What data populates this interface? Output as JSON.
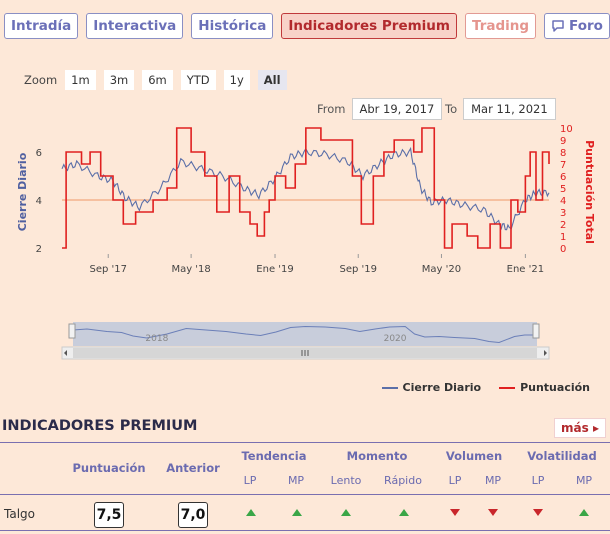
{
  "tabs": [
    {
      "label": "Intradía"
    },
    {
      "label": "Interactiva"
    },
    {
      "label": "Histórica"
    },
    {
      "label": "Indicadores Premium",
      "active": true
    },
    {
      "label": "Trading"
    },
    {
      "label": "Foro",
      "icon": "chat-bubble-icon"
    }
  ],
  "zoom": {
    "label": "Zoom",
    "buttons": [
      "1m",
      "3m",
      "6m",
      "YTD",
      "1y",
      "All"
    ],
    "selected": "All"
  },
  "range": {
    "from_label": "From",
    "from": "Abr 19, 2017",
    "to_label": "To",
    "to": "Mar 11, 2021"
  },
  "colors": {
    "close": "#5b6fa8",
    "score": "#e02020",
    "accent": "#b22a2d",
    "reference": "#f2a77e"
  },
  "chart_data": {
    "type": "line",
    "ylabel_left": "Cierre Diario",
    "ylabel_right": "Puntuación Total",
    "y_left_ticks": [
      "2",
      "4",
      "6"
    ],
    "y_right_ticks": [
      "0",
      "1",
      "2",
      "3",
      "4",
      "5",
      "6",
      "7",
      "8",
      "9",
      "10"
    ],
    "x_ticks": [
      "Sep '17",
      "May '18",
      "Ene '19",
      "Sep '19",
      "May '20",
      "Ene '21"
    ],
    "navigator_ticks": [
      "2018",
      "2020"
    ],
    "ylim_left": [
      2,
      6.5
    ],
    "ylim_right": [
      0,
      10
    ],
    "reference_line_left": 4,
    "series": [
      {
        "name": "Cierre Diario",
        "axis": "left",
        "x": [
          "2017-04-19",
          "2017-06-01",
          "2017-08-01",
          "2017-09-15",
          "2017-10-20",
          "2017-12-01",
          "2018-02-01",
          "2018-04-01",
          "2018-06-01",
          "2018-08-01",
          "2018-10-01",
          "2018-11-15",
          "2019-01-01",
          "2019-02-15",
          "2019-04-01",
          "2019-06-01",
          "2019-08-01",
          "2019-09-15",
          "2019-11-01",
          "2019-12-15",
          "2020-02-01",
          "2020-03-01",
          "2020-04-01",
          "2020-05-15",
          "2020-07-01",
          "2020-09-01",
          "2020-10-15",
          "2020-11-15",
          "2021-01-01",
          "2021-02-01",
          "2021-03-11"
        ],
        "y": [
          5.3,
          5.5,
          5.0,
          4.8,
          4.1,
          3.7,
          4.5,
          5.6,
          5.3,
          5.0,
          4.5,
          4.2,
          4.9,
          5.8,
          6.0,
          5.9,
          5.6,
          5.0,
          5.5,
          5.9,
          6.0,
          4.5,
          3.9,
          4.0,
          3.8,
          3.6,
          3.0,
          2.8,
          4.0,
          4.3,
          4.3
        ]
      },
      {
        "name": "Puntuación",
        "axis": "right",
        "x": [
          "2017-04-19",
          "2017-05-01",
          "2017-06-15",
          "2017-07-10",
          "2017-08-10",
          "2017-09-15",
          "2017-10-15",
          "2017-11-20",
          "2018-01-10",
          "2018-02-20",
          "2018-03-20",
          "2018-05-01",
          "2018-06-10",
          "2018-07-15",
          "2018-08-20",
          "2018-09-20",
          "2018-10-20",
          "2018-11-10",
          "2018-12-01",
          "2018-12-15",
          "2019-01-01",
          "2019-02-01",
          "2019-03-01",
          "2019-04-01",
          "2019-05-15",
          "2019-06-15",
          "2019-07-15",
          "2019-08-15",
          "2019-09-10",
          "2019-10-15",
          "2019-11-15",
          "2019-12-15",
          "2020-01-10",
          "2020-02-10",
          "2020-03-05",
          "2020-04-10",
          "2020-05-10",
          "2020-06-01",
          "2020-07-15",
          "2020-08-15",
          "2020-09-20",
          "2020-10-20",
          "2020-11-20",
          "2020-12-10",
          "2021-01-01",
          "2021-01-15",
          "2021-02-01",
          "2021-02-20",
          "2021-03-11"
        ],
        "y": [
          0,
          8,
          7,
          8,
          6,
          4,
          2,
          3,
          4,
          5,
          10,
          8,
          6,
          3,
          6,
          3,
          2,
          1,
          3,
          4,
          6,
          5,
          7,
          10,
          9,
          9,
          9,
          6,
          2,
          6,
          8,
          9,
          9,
          8,
          10,
          4,
          0,
          2,
          1,
          0,
          2,
          0,
          4,
          3,
          6,
          8,
          4,
          8,
          7
        ]
      }
    ]
  },
  "legend": [
    {
      "label": "Cierre Diario"
    },
    {
      "label": "Puntuación"
    }
  ],
  "indicators": {
    "title": "INDICADORES PREMIUM",
    "more_label": "más",
    "col_puntuacion": "Puntuación",
    "col_anterior": "Anterior",
    "groups": [
      "Tendencia",
      "Momento",
      "Volumen",
      "Volatilidad"
    ],
    "subcols": [
      "LP",
      "MP",
      "Lento",
      "Rápido",
      "LP",
      "MP",
      "LP",
      "MP"
    ],
    "row": {
      "name": "Talgo",
      "score": "7,5",
      "previous": "7,0",
      "signals": [
        "up",
        "up",
        "up",
        "up",
        "down",
        "down",
        "down",
        "up"
      ]
    }
  }
}
